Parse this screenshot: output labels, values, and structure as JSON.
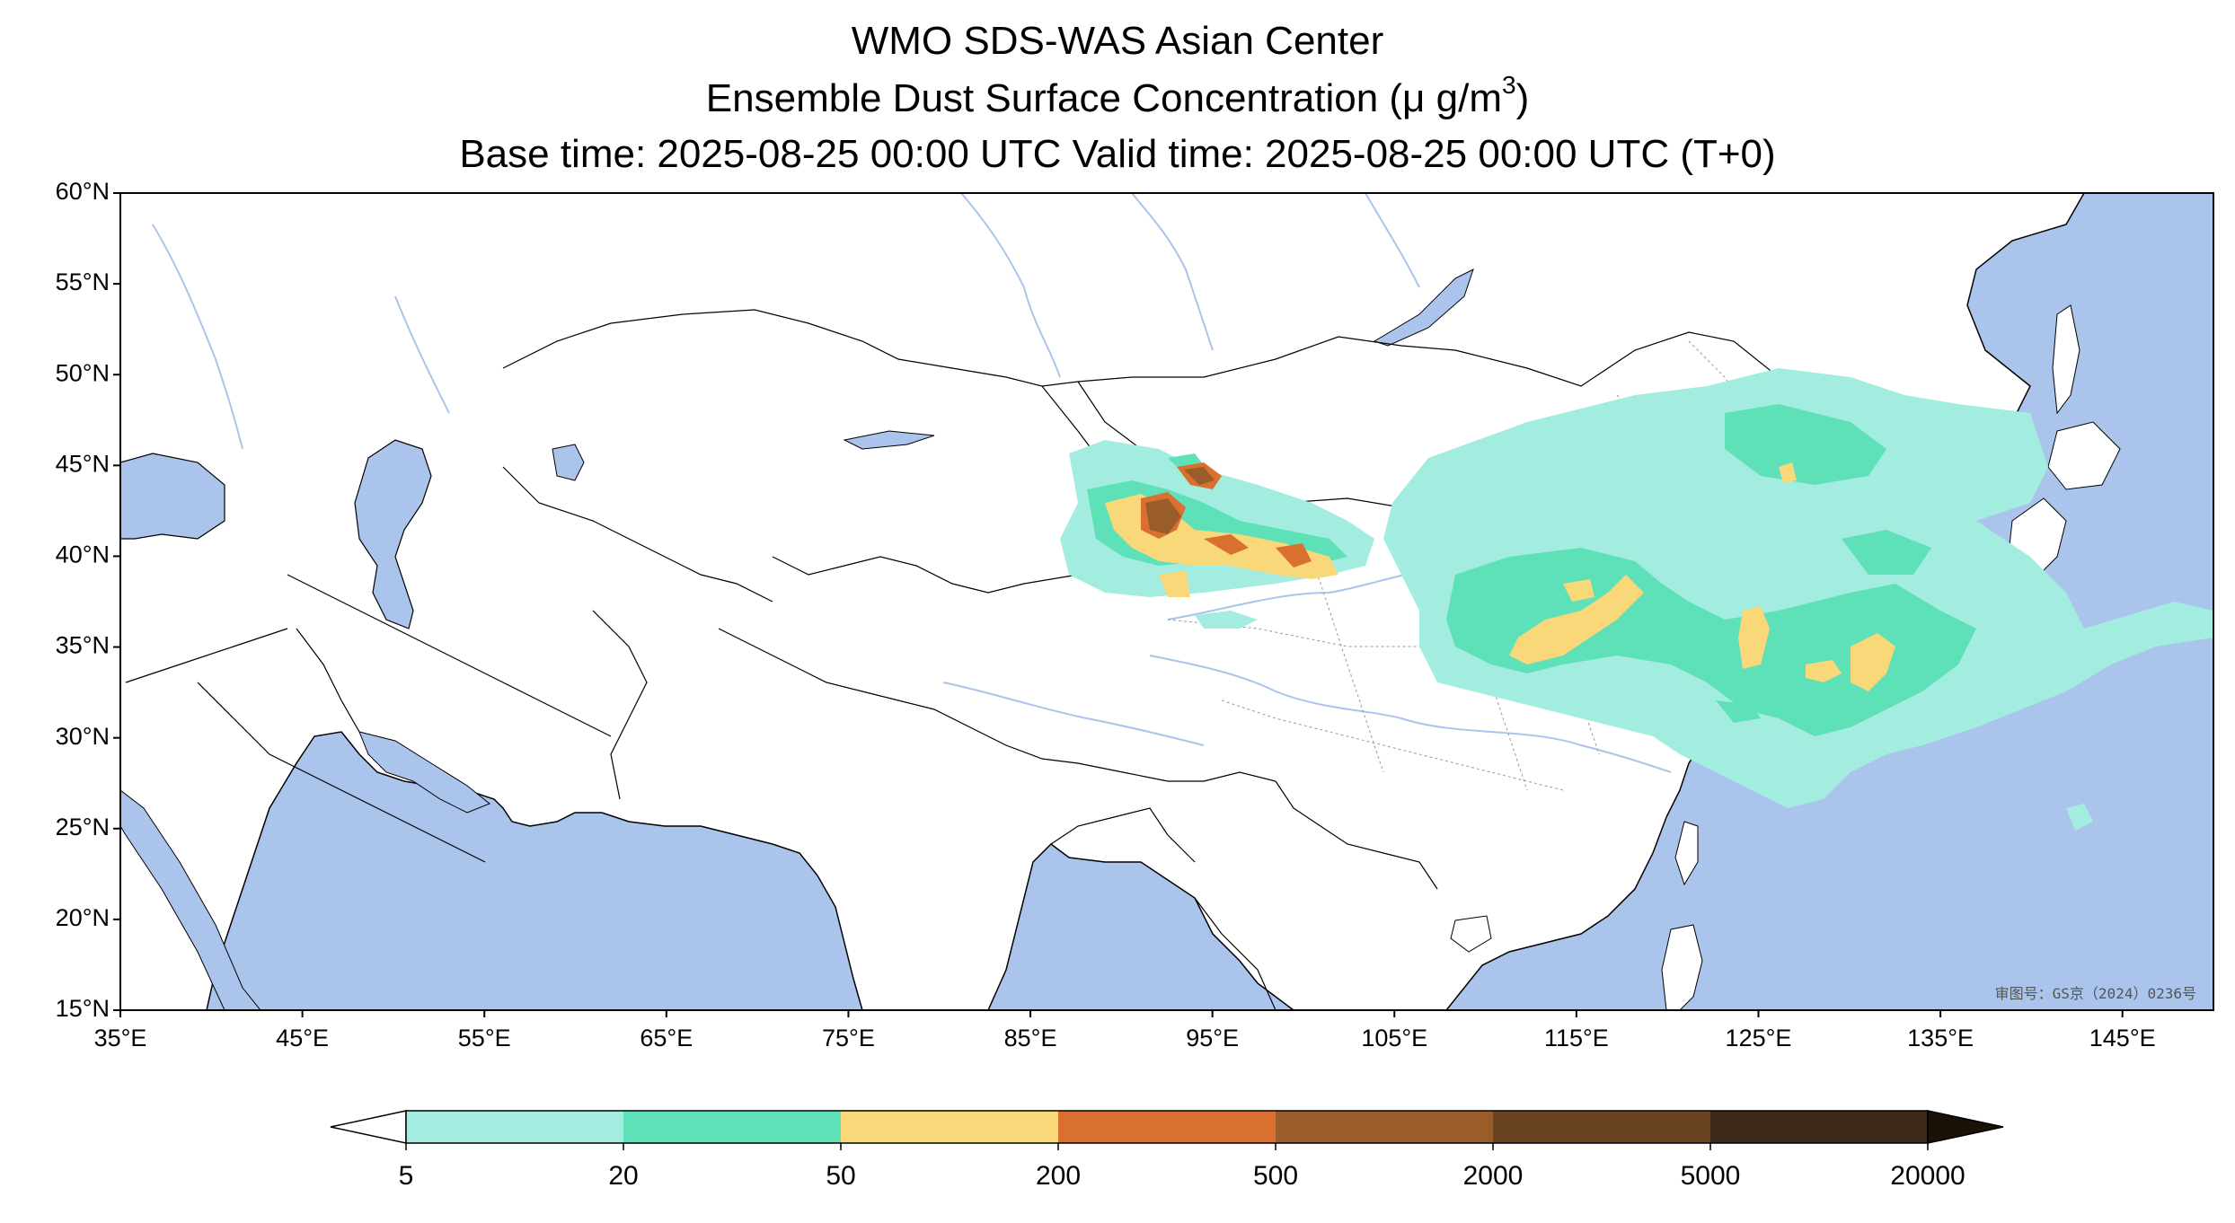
{
  "title": {
    "line1": "WMO SDS-WAS Asian Center",
    "line2_prefix": "Ensemble Dust Surface Concentration (",
    "line2_unit": "μ g/m",
    "line2_sup": "3",
    "line2_suffix": ")",
    "line3": "Base time: 2025-08-25 00:00 UTC Valid time: 2025-08-25 00:00 UTC (T+0)"
  },
  "map": {
    "lon_range": [
      35,
      150
    ],
    "lat_range": [
      15,
      60
    ],
    "lat_ticks": [
      "60°N",
      "55°N",
      "50°N",
      "45°N",
      "40°N",
      "35°N",
      "30°N",
      "25°N",
      "20°N",
      "15°N"
    ],
    "lon_ticks": [
      "35°E",
      "45°E",
      "55°E",
      "65°E",
      "75°E",
      "85°E",
      "95°E",
      "105°E",
      "115°E",
      "125°E",
      "135°E",
      "145°E"
    ],
    "approval_note": "审图号：GS京（2024）0236号",
    "colors": {
      "ocean": "#aac4ec",
      "land": "#ffffff",
      "border": "#000000",
      "river": "#aac4ec"
    }
  },
  "colorbar": {
    "levels": [
      "5",
      "20",
      "50",
      "200",
      "500",
      "2000",
      "5000",
      "20000"
    ],
    "colors": [
      "#a3ece0",
      "#5ee0b8",
      "#f8d878",
      "#da7030",
      "#9a5c28",
      "#6a4420",
      "#3c2818",
      "#1a1208"
    ],
    "under_color": "#ffffff",
    "extend": "both"
  }
}
